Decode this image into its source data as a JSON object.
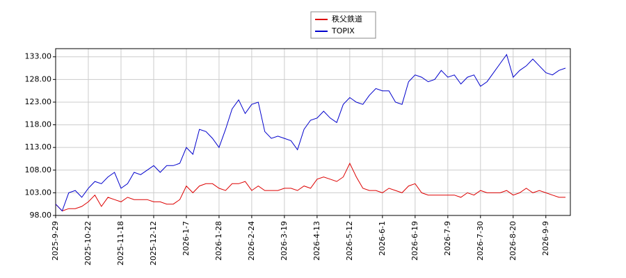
{
  "chart_data": {
    "type": "line",
    "categories": [
      "2025-9-29",
      null,
      null,
      null,
      null,
      "2025-10-22",
      null,
      null,
      null,
      null,
      "2025-11-18",
      null,
      null,
      null,
      null,
      "2025-12-12",
      null,
      null,
      null,
      null,
      "2026-1-7",
      null,
      null,
      null,
      null,
      "2026-1-28",
      null,
      null,
      null,
      null,
      "2026-2-24",
      null,
      null,
      null,
      null,
      "2026-3-19",
      null,
      null,
      null,
      null,
      "2026-4-13",
      null,
      null,
      null,
      null,
      "2026-5-12",
      null,
      null,
      null,
      null,
      "2026-6-1",
      null,
      null,
      null,
      null,
      "2026-6-19",
      null,
      null,
      null,
      null,
      "2026-7-9",
      null,
      null,
      null,
      null,
      "2026-7-30",
      null,
      null,
      null,
      null,
      "2026-8-20",
      null,
      null,
      null,
      null,
      "2026-9-9",
      null,
      null,
      null
    ],
    "series": [
      {
        "name": "秩父鉄道",
        "color": "#dd0000",
        "values": [
          100.5,
          99,
          99.5,
          99.5,
          100,
          101,
          102.5,
          100,
          102,
          101.5,
          101,
          102,
          101.5,
          101.5,
          101.5,
          101,
          101,
          100.5,
          100.5,
          101.5,
          104.5,
          103,
          104.5,
          105,
          105,
          104,
          103.5,
          105,
          105,
          105.5,
          103.5,
          104.5,
          103.5,
          103.5,
          103.5,
          104,
          104,
          103.5,
          104.5,
          104,
          106,
          106.5,
          106,
          105.5,
          106.5,
          109.5,
          106.5,
          104,
          103.5,
          103.5,
          103,
          104,
          103.5,
          103,
          104.5,
          105,
          103,
          102.5,
          102.5,
          102.5,
          102.5,
          102.5,
          102,
          103,
          102.5,
          103.5,
          103,
          103,
          103,
          103.5,
          102.5,
          103,
          104,
          103,
          103.5,
          103,
          102.5,
          102,
          102
        ]
      },
      {
        "name": "TOPIX",
        "color": "#0000cc",
        "values": [
          100.5,
          99,
          103,
          103.5,
          102,
          104,
          105.5,
          105,
          106.5,
          107.5,
          104,
          105,
          107.5,
          107,
          108,
          109,
          107.5,
          109,
          109,
          109.5,
          113,
          111.5,
          117,
          116.5,
          115,
          113,
          117,
          121.5,
          123.5,
          120.5,
          122.5,
          123,
          116.5,
          115,
          115.5,
          115,
          114.5,
          112.5,
          117,
          119,
          119.5,
          121,
          119.5,
          118.5,
          122.5,
          124,
          123,
          122.5,
          124.5,
          126,
          125.5,
          125.5,
          123,
          122.5,
          127.5,
          129,
          128.5,
          127.5,
          128,
          130,
          128.5,
          129,
          127,
          128.5,
          129,
          126.5,
          127.5,
          129.5,
          131.5,
          133.5,
          128.5,
          130,
          131,
          132.5,
          131,
          129.5,
          129,
          130,
          130.5
        ]
      }
    ],
    "ylim": [
      98,
      134.8
    ],
    "yticks": [
      {
        "value": 98,
        "label": "98.00"
      },
      {
        "value": 103,
        "label": "103.00"
      },
      {
        "value": 108,
        "label": "108.00"
      },
      {
        "value": 113,
        "label": "113.00"
      },
      {
        "value": 118,
        "label": "118.00"
      },
      {
        "value": 123,
        "label": "123.00"
      },
      {
        "value": 128,
        "label": "128.00"
      },
      {
        "value": 133,
        "label": "133.00"
      }
    ],
    "grid": true,
    "legend": "top"
  }
}
